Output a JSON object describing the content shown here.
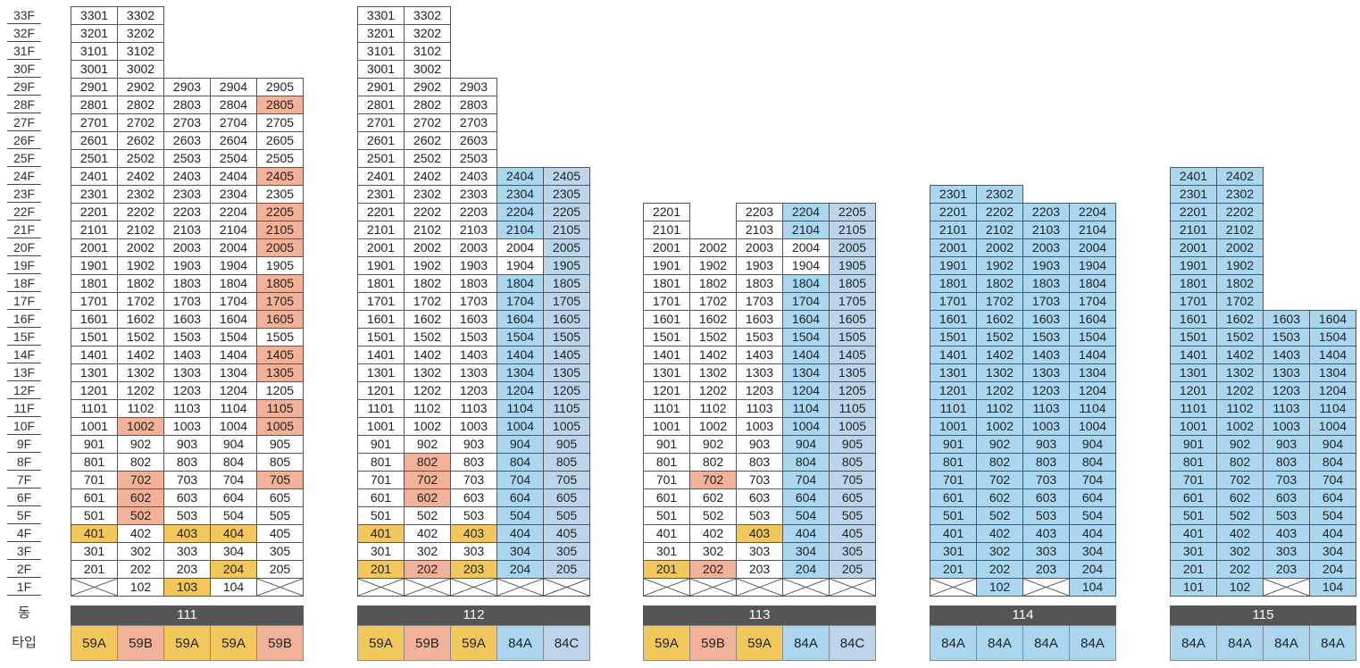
{
  "labels": {
    "dong": "동",
    "type": "타입"
  },
  "colors": {
    "59A": "#f2c75b",
    "59B": "#f2b199",
    "84A": "#aad6ef",
    "84C": "#bdd5ea",
    "white": "#ffffff",
    "bar": "#555555"
  },
  "floors": [
    "33F",
    "32F",
    "31F",
    "30F",
    "29F",
    "28F",
    "27F",
    "26F",
    "25F",
    "24F",
    "23F",
    "22F",
    "21F",
    "20F",
    "19F",
    "18F",
    "17F",
    "16F",
    "15F",
    "14F",
    "13F",
    "12F",
    "11F",
    "10F",
    "9F",
    "8F",
    "7F",
    "6F",
    "5F",
    "4F",
    "3F",
    "2F",
    "1F"
  ],
  "buildings": [
    {
      "name": "111",
      "cols": 5,
      "types": [
        "59A",
        "59B",
        "59A",
        "59A",
        "59B"
      ],
      "floors": {
        "33": [
          "3301",
          "3302",
          "",
          "",
          ""
        ],
        "32": [
          "3201",
          "3202",
          "",
          "",
          ""
        ],
        "31": [
          "3101",
          "3102",
          "",
          "",
          ""
        ],
        "30": [
          "3001",
          "3002",
          "",
          "",
          ""
        ],
        "29": [
          "2901",
          "2902",
          "2903",
          "2904",
          "2905"
        ],
        "28": [
          "2801",
          "2802",
          "2803",
          "2804",
          "2805"
        ],
        "27": [
          "2701",
          "2702",
          "2703",
          "2704",
          "2705"
        ],
        "26": [
          "2601",
          "2602",
          "2603",
          "2604",
          "2605"
        ],
        "25": [
          "2501",
          "2502",
          "2503",
          "2504",
          "2505"
        ],
        "24": [
          "2401",
          "2402",
          "2403",
          "2404",
          "2405"
        ],
        "23": [
          "2301",
          "2302",
          "2303",
          "2304",
          "2305"
        ],
        "22": [
          "2201",
          "2202",
          "2203",
          "2204",
          "2205"
        ],
        "21": [
          "2101",
          "2102",
          "2103",
          "2104",
          "2105"
        ],
        "20": [
          "2001",
          "2002",
          "2003",
          "2004",
          "2005"
        ],
        "19": [
          "1901",
          "1902",
          "1903",
          "1904",
          "1905"
        ],
        "18": [
          "1801",
          "1802",
          "1803",
          "1804",
          "1805"
        ],
        "17": [
          "1701",
          "1702",
          "1703",
          "1704",
          "1705"
        ],
        "16": [
          "1601",
          "1602",
          "1603",
          "1604",
          "1605"
        ],
        "15": [
          "1501",
          "1502",
          "1503",
          "1504",
          "1505"
        ],
        "14": [
          "1401",
          "1402",
          "1403",
          "1404",
          "1405"
        ],
        "13": [
          "1301",
          "1302",
          "1303",
          "1304",
          "1305"
        ],
        "12": [
          "1201",
          "1202",
          "1203",
          "1204",
          "1205"
        ],
        "11": [
          "1101",
          "1102",
          "1103",
          "1104",
          "1105"
        ],
        "10": [
          "1001",
          "1002",
          "1003",
          "1004",
          "1005"
        ],
        "9": [
          "901",
          "902",
          "903",
          "904",
          "905"
        ],
        "8": [
          "801",
          "802",
          "803",
          "804",
          "805"
        ],
        "7": [
          "701",
          "702",
          "703",
          "704",
          "705"
        ],
        "6": [
          "601",
          "602",
          "603",
          "604",
          "605"
        ],
        "5": [
          "501",
          "502",
          "503",
          "504",
          "505"
        ],
        "4": [
          "401",
          "402",
          "403",
          "404",
          "405"
        ],
        "3": [
          "301",
          "302",
          "303",
          "304",
          "305"
        ],
        "2": [
          "201",
          "202",
          "203",
          "204",
          "205"
        ],
        "1": [
          "X",
          "102",
          "103",
          "104",
          "X"
        ]
      },
      "highlight": {
        "2805": "59B",
        "2405": "59B",
        "2205": "59B",
        "2105": "59B",
        "2005": "59B",
        "1805": "59B",
        "1705": "59B",
        "1605": "59B",
        "1405": "59B",
        "1305": "59B",
        "1105": "59B",
        "1005": "59B",
        "1002": "59B",
        "702": "59B",
        "705": "59B",
        "602": "59B",
        "502": "59B",
        "401": "59A",
        "403": "59A",
        "404": "59A",
        "204": "59A",
        "103": "59A"
      }
    },
    {
      "name": "112",
      "cols": 5,
      "types": [
        "59A",
        "59B",
        "59A",
        "84A",
        "84C"
      ],
      "floors": {
        "33": [
          "3301",
          "3302",
          "",
          "",
          ""
        ],
        "32": [
          "3201",
          "3202",
          "",
          "",
          ""
        ],
        "31": [
          "3101",
          "3102",
          "",
          "",
          ""
        ],
        "30": [
          "3001",
          "3002",
          "",
          "",
          ""
        ],
        "29": [
          "2901",
          "2902",
          "2903",
          "",
          ""
        ],
        "28": [
          "2801",
          "2802",
          "2803",
          "",
          ""
        ],
        "27": [
          "2701",
          "2702",
          "2703",
          "",
          ""
        ],
        "26": [
          "2601",
          "2602",
          "2603",
          "",
          ""
        ],
        "25": [
          "2501",
          "2502",
          "2503",
          "",
          ""
        ],
        "24": [
          "2401",
          "2402",
          "2403",
          "2404",
          "2405"
        ],
        "23": [
          "2301",
          "2302",
          "2303",
          "2304",
          "2305"
        ],
        "22": [
          "2201",
          "2202",
          "2203",
          "2204",
          "2205"
        ],
        "21": [
          "2101",
          "2102",
          "2103",
          "2104",
          "2105"
        ],
        "20": [
          "2001",
          "2002",
          "2003",
          "2004",
          "2005"
        ],
        "19": [
          "1901",
          "1902",
          "1903",
          "1904",
          "1905"
        ],
        "18": [
          "1801",
          "1802",
          "1803",
          "1804",
          "1805"
        ],
        "17": [
          "1701",
          "1702",
          "1703",
          "1704",
          "1705"
        ],
        "16": [
          "1601",
          "1602",
          "1603",
          "1604",
          "1605"
        ],
        "15": [
          "1501",
          "1502",
          "1503",
          "1504",
          "1505"
        ],
        "14": [
          "1401",
          "1402",
          "1403",
          "1404",
          "1405"
        ],
        "13": [
          "1301",
          "1302",
          "1303",
          "1304",
          "1305"
        ],
        "12": [
          "1201",
          "1202",
          "1203",
          "1204",
          "1205"
        ],
        "11": [
          "1101",
          "1102",
          "1103",
          "1104",
          "1105"
        ],
        "10": [
          "1001",
          "1002",
          "1003",
          "1004",
          "1005"
        ],
        "9": [
          "901",
          "902",
          "903",
          "904",
          "905"
        ],
        "8": [
          "801",
          "802",
          "803",
          "804",
          "805"
        ],
        "7": [
          "701",
          "702",
          "703",
          "704",
          "705"
        ],
        "6": [
          "601",
          "602",
          "603",
          "604",
          "605"
        ],
        "5": [
          "501",
          "502",
          "503",
          "504",
          "505"
        ],
        "4": [
          "401",
          "402",
          "403",
          "404",
          "405"
        ],
        "3": [
          "301",
          "302",
          "303",
          "304",
          "305"
        ],
        "2": [
          "201",
          "202",
          "203",
          "204",
          "205"
        ],
        "1": [
          "X",
          "X",
          "X",
          "X",
          "X"
        ]
      },
      "highlight": {
        "802": "59B",
        "702": "59B",
        "602": "59B",
        "401": "59A",
        "403": "59A",
        "201": "59A",
        "202": "59B",
        "203": "59A"
      },
      "blue_cols": [
        3,
        4
      ],
      "blue_exceptions": [
        "2004",
        "1904"
      ]
    },
    {
      "name": "113",
      "cols": 5,
      "types": [
        "59A",
        "59B",
        "59A",
        "84A",
        "84C"
      ],
      "floors": {
        "22": [
          "2201",
          "",
          "2203",
          "2204",
          "2205"
        ],
        "21": [
          "2101",
          "",
          "2103",
          "2104",
          "2105"
        ],
        "20": [
          "2001",
          "2002",
          "2003",
          "2004",
          "2005"
        ],
        "19": [
          "1901",
          "1902",
          "1903",
          "1904",
          "1905"
        ],
        "18": [
          "1801",
          "1802",
          "1803",
          "1804",
          "1805"
        ],
        "17": [
          "1701",
          "1702",
          "1703",
          "1704",
          "1705"
        ],
        "16": [
          "1601",
          "1602",
          "1603",
          "1604",
          "1605"
        ],
        "15": [
          "1501",
          "1502",
          "1503",
          "1504",
          "1505"
        ],
        "14": [
          "1401",
          "1402",
          "1403",
          "1404",
          "1405"
        ],
        "13": [
          "1301",
          "1302",
          "1303",
          "1304",
          "1305"
        ],
        "12": [
          "1201",
          "1202",
          "1203",
          "1204",
          "1205"
        ],
        "11": [
          "1101",
          "1102",
          "1103",
          "1104",
          "1105"
        ],
        "10": [
          "1001",
          "1002",
          "1003",
          "1004",
          "1005"
        ],
        "9": [
          "901",
          "902",
          "903",
          "904",
          "905"
        ],
        "8": [
          "801",
          "802",
          "803",
          "804",
          "805"
        ],
        "7": [
          "701",
          "702",
          "703",
          "704",
          "705"
        ],
        "6": [
          "601",
          "602",
          "603",
          "604",
          "605"
        ],
        "5": [
          "501",
          "502",
          "503",
          "504",
          "505"
        ],
        "4": [
          "401",
          "402",
          "403",
          "404",
          "405"
        ],
        "3": [
          "301",
          "302",
          "303",
          "304",
          "305"
        ],
        "2": [
          "201",
          "202",
          "203",
          "204",
          "205"
        ],
        "1": [
          "X",
          "X",
          "X",
          "X",
          "X"
        ]
      },
      "highlight": {
        "702": "59B",
        "403": "59A",
        "201": "59A",
        "202": "59B"
      },
      "blue_cols": [
        3,
        4
      ],
      "blue_exceptions": [
        "2004",
        "1904"
      ]
    },
    {
      "name": "114",
      "cols": 4,
      "types": [
        "84A",
        "84A",
        "84A",
        "84A"
      ],
      "floors": {
        "23": [
          "2301",
          "2302",
          "",
          ""
        ],
        "22": [
          "2201",
          "2202",
          "2203",
          "2204"
        ],
        "21": [
          "2101",
          "2102",
          "2103",
          "2104"
        ],
        "20": [
          "2001",
          "2002",
          "2003",
          "2004"
        ],
        "19": [
          "1901",
          "1902",
          "1903",
          "1904"
        ],
        "18": [
          "1801",
          "1802",
          "1803",
          "1804"
        ],
        "17": [
          "1701",
          "1702",
          "1703",
          "1704"
        ],
        "16": [
          "1601",
          "1602",
          "1603",
          "1604"
        ],
        "15": [
          "1501",
          "1502",
          "1503",
          "1504"
        ],
        "14": [
          "1401",
          "1402",
          "1403",
          "1404"
        ],
        "13": [
          "1301",
          "1302",
          "1303",
          "1304"
        ],
        "12": [
          "1201",
          "1202",
          "1203",
          "1204"
        ],
        "11": [
          "1101",
          "1102",
          "1103",
          "1104"
        ],
        "10": [
          "1001",
          "1002",
          "1003",
          "1004"
        ],
        "9": [
          "901",
          "902",
          "903",
          "904"
        ],
        "8": [
          "801",
          "802",
          "803",
          "804"
        ],
        "7": [
          "701",
          "702",
          "703",
          "704"
        ],
        "6": [
          "601",
          "602",
          "603",
          "604"
        ],
        "5": [
          "501",
          "502",
          "503",
          "504"
        ],
        "4": [
          "401",
          "402",
          "403",
          "404"
        ],
        "3": [
          "301",
          "302",
          "303",
          "304"
        ],
        "2": [
          "201",
          "202",
          "203",
          "204"
        ],
        "1": [
          "X",
          "102",
          "X",
          "104"
        ]
      },
      "highlight": {},
      "all_blue": true
    },
    {
      "name": "115",
      "cols": 4,
      "types": [
        "84A",
        "84A",
        "84A",
        "84A"
      ],
      "floors": {
        "24": [
          "2401",
          "2402",
          "",
          ""
        ],
        "23": [
          "2301",
          "2302",
          "",
          ""
        ],
        "22": [
          "2201",
          "2202",
          "",
          ""
        ],
        "21": [
          "2101",
          "2102",
          "",
          ""
        ],
        "20": [
          "2001",
          "2002",
          "",
          ""
        ],
        "19": [
          "1901",
          "1902",
          "",
          ""
        ],
        "18": [
          "1801",
          "1802",
          "",
          ""
        ],
        "17": [
          "1701",
          "1702",
          "",
          ""
        ],
        "16": [
          "1601",
          "1602",
          "1603",
          "1604"
        ],
        "15": [
          "1501",
          "1502",
          "1503",
          "1504"
        ],
        "14": [
          "1401",
          "1402",
          "1403",
          "1404"
        ],
        "13": [
          "1301",
          "1302",
          "1303",
          "1304"
        ],
        "12": [
          "1201",
          "1202",
          "1203",
          "1204"
        ],
        "11": [
          "1101",
          "1102",
          "1103",
          "1104"
        ],
        "10": [
          "1001",
          "1002",
          "1003",
          "1004"
        ],
        "9": [
          "901",
          "902",
          "903",
          "904"
        ],
        "8": [
          "801",
          "802",
          "803",
          "804"
        ],
        "7": [
          "701",
          "702",
          "703",
          "704"
        ],
        "6": [
          "601",
          "602",
          "603",
          "604"
        ],
        "5": [
          "501",
          "502",
          "503",
          "504"
        ],
        "4": [
          "401",
          "402",
          "403",
          "404"
        ],
        "3": [
          "301",
          "302",
          "303",
          "304"
        ],
        "2": [
          "201",
          "202",
          "203",
          "204"
        ],
        "1": [
          "101",
          "102",
          "X",
          "104"
        ]
      },
      "highlight": {},
      "all_blue": true
    }
  ]
}
